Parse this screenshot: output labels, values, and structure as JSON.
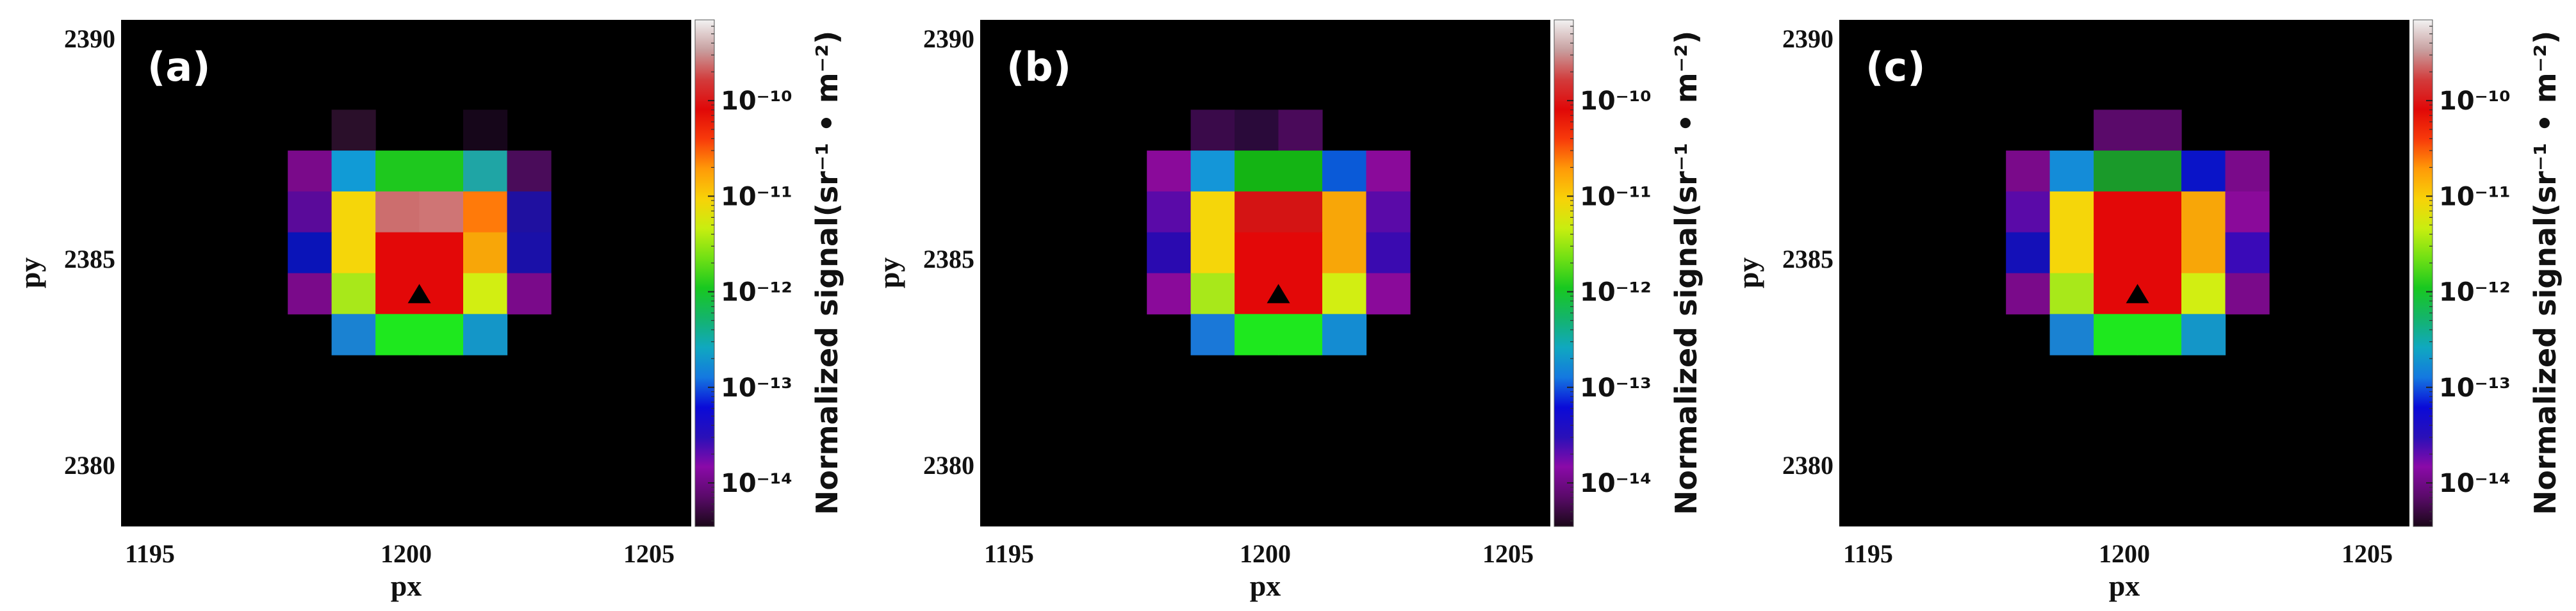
{
  "chart_data": [
    {
      "type": "heatmap",
      "panel_label": "(a)",
      "xlabel": "px",
      "ylabel": "py",
      "xlim": [
        1193.7,
        1206.7
      ],
      "ylim": [
        2378.3,
        2390.7
      ],
      "x_ticks": [
        1195,
        1200,
        1205
      ],
      "y_ticks": [
        2380,
        2385,
        2390
      ],
      "background": "#000000",
      "marker": {
        "x": 1200.5,
        "y": 2384,
        "shape": "triangle",
        "color": "#000000"
      },
      "cells": [
        {
          "x": 1199,
          "y": 2388,
          "color": "#2a0f2a"
        },
        {
          "x": 1202,
          "y": 2388,
          "color": "#16061a"
        },
        {
          "x": 1198,
          "y": 2387,
          "color": "#7a0a8a"
        },
        {
          "x": 1199,
          "y": 2387,
          "color": "#119bd6"
        },
        {
          "x": 1200,
          "y": 2387,
          "color": "#1ec81e"
        },
        {
          "x": 1201,
          "y": 2387,
          "color": "#1ec81e"
        },
        {
          "x": 1202,
          "y": 2387,
          "color": "#1fa5a5"
        },
        {
          "x": 1203,
          "y": 2387,
          "color": "#4a0c5a"
        },
        {
          "x": 1198,
          "y": 2386,
          "color": "#5a0a9a"
        },
        {
          "x": 1199,
          "y": 2386,
          "color": "#f5d60a"
        },
        {
          "x": 1200,
          "y": 2386,
          "color": "#cc6e6e"
        },
        {
          "x": 1201,
          "y": 2386,
          "color": "#cf7575"
        },
        {
          "x": 1202,
          "y": 2386,
          "color": "#ff7a0a"
        },
        {
          "x": 1203,
          "y": 2386,
          "color": "#1f10a0"
        },
        {
          "x": 1198,
          "y": 2385,
          "color": "#0a14b8"
        },
        {
          "x": 1199,
          "y": 2385,
          "color": "#f5d60a"
        },
        {
          "x": 1200,
          "y": 2385,
          "color": "#e30808"
        },
        {
          "x": 1201,
          "y": 2385,
          "color": "#e30808"
        },
        {
          "x": 1202,
          "y": 2385,
          "color": "#f8a608"
        },
        {
          "x": 1203,
          "y": 2385,
          "color": "#1a10a8"
        },
        {
          "x": 1198,
          "y": 2384,
          "color": "#7a0a8a"
        },
        {
          "x": 1199,
          "y": 2384,
          "color": "#a8e81a"
        },
        {
          "x": 1200,
          "y": 2384,
          "color": "#e30808"
        },
        {
          "x": 1201,
          "y": 2384,
          "color": "#e30808"
        },
        {
          "x": 1202,
          "y": 2384,
          "color": "#d2ee12"
        },
        {
          "x": 1203,
          "y": 2384,
          "color": "#7a0a8a"
        },
        {
          "x": 1199,
          "y": 2383,
          "color": "#1a82d2"
        },
        {
          "x": 1200,
          "y": 2383,
          "color": "#1ee81e"
        },
        {
          "x": 1201,
          "y": 2383,
          "color": "#1ee81e"
        },
        {
          "x": 1202,
          "y": 2383,
          "color": "#1496c8"
        }
      ]
    },
    {
      "type": "heatmap",
      "panel_label": "(b)",
      "xlabel": "px",
      "ylabel": "py",
      "xlim": [
        1193.7,
        1206.7
      ],
      "ylim": [
        2378.3,
        2390.7
      ],
      "x_ticks": [
        1195,
        1200,
        1205
      ],
      "y_ticks": [
        2380,
        2385,
        2390
      ],
      "background": "#000000",
      "marker": {
        "x": 1200.5,
        "y": 2384,
        "shape": "triangle",
        "color": "#000000"
      },
      "cells": [
        {
          "x": 1199,
          "y": 2388,
          "color": "#3a0a4a"
        },
        {
          "x": 1200,
          "y": 2388,
          "color": "#2a0a3a"
        },
        {
          "x": 1201,
          "y": 2388,
          "color": "#4a0a5a"
        },
        {
          "x": 1198,
          "y": 2387,
          "color": "#8a0a9a"
        },
        {
          "x": 1199,
          "y": 2387,
          "color": "#1496d8"
        },
        {
          "x": 1200,
          "y": 2387,
          "color": "#14b414"
        },
        {
          "x": 1201,
          "y": 2387,
          "color": "#14b414"
        },
        {
          "x": 1202,
          "y": 2387,
          "color": "#0a5ad8"
        },
        {
          "x": 1203,
          "y": 2387,
          "color": "#8a0a9a"
        },
        {
          "x": 1198,
          "y": 2386,
          "color": "#5a0aa8"
        },
        {
          "x": 1199,
          "y": 2386,
          "color": "#f5d60a"
        },
        {
          "x": 1200,
          "y": 2386,
          "color": "#d41414"
        },
        {
          "x": 1201,
          "y": 2386,
          "color": "#d41414"
        },
        {
          "x": 1202,
          "y": 2386,
          "color": "#f8a608"
        },
        {
          "x": 1203,
          "y": 2386,
          "color": "#5a0aa8"
        },
        {
          "x": 1198,
          "y": 2385,
          "color": "#2a0ab0"
        },
        {
          "x": 1199,
          "y": 2385,
          "color": "#f5d60a"
        },
        {
          "x": 1200,
          "y": 2385,
          "color": "#e30808"
        },
        {
          "x": 1201,
          "y": 2385,
          "color": "#e30808"
        },
        {
          "x": 1202,
          "y": 2385,
          "color": "#f8a608"
        },
        {
          "x": 1203,
          "y": 2385,
          "color": "#3a0ab0"
        },
        {
          "x": 1198,
          "y": 2384,
          "color": "#8a0a9a"
        },
        {
          "x": 1199,
          "y": 2384,
          "color": "#a8e81a"
        },
        {
          "x": 1200,
          "y": 2384,
          "color": "#e30808"
        },
        {
          "x": 1201,
          "y": 2384,
          "color": "#e30808"
        },
        {
          "x": 1202,
          "y": 2384,
          "color": "#d2ee12"
        },
        {
          "x": 1203,
          "y": 2384,
          "color": "#8a0a9a"
        },
        {
          "x": 1199,
          "y": 2383,
          "color": "#1a78d8"
        },
        {
          "x": 1200,
          "y": 2383,
          "color": "#1ee81e"
        },
        {
          "x": 1201,
          "y": 2383,
          "color": "#1ee81e"
        },
        {
          "x": 1202,
          "y": 2383,
          "color": "#148cd2"
        }
      ]
    },
    {
      "type": "heatmap",
      "panel_label": "(c)",
      "xlabel": "px",
      "ylabel": "py",
      "xlim": [
        1193.7,
        1206.7
      ],
      "ylim": [
        2378.3,
        2390.7
      ],
      "x_ticks": [
        1195,
        1200,
        1205
      ],
      "y_ticks": [
        2380,
        2385,
        2390
      ],
      "background": "#000000",
      "marker": {
        "x": 1200.5,
        "y": 2384,
        "shape": "triangle",
        "color": "#000000"
      },
      "cells": [
        {
          "x": 1200,
          "y": 2388,
          "color": "#5a0a6a"
        },
        {
          "x": 1201,
          "y": 2388,
          "color": "#5a0a6a"
        },
        {
          "x": 1198,
          "y": 2387,
          "color": "#7a0a8a"
        },
        {
          "x": 1199,
          "y": 2387,
          "color": "#148cd8"
        },
        {
          "x": 1200,
          "y": 2387,
          "color": "#1a9a2a"
        },
        {
          "x": 1201,
          "y": 2387,
          "color": "#1a9a2a"
        },
        {
          "x": 1202,
          "y": 2387,
          "color": "#0a14c8"
        },
        {
          "x": 1203,
          "y": 2387,
          "color": "#7a0a8a"
        },
        {
          "x": 1198,
          "y": 2386,
          "color": "#5a0aa8"
        },
        {
          "x": 1199,
          "y": 2386,
          "color": "#f5d60a"
        },
        {
          "x": 1200,
          "y": 2386,
          "color": "#e30808"
        },
        {
          "x": 1201,
          "y": 2386,
          "color": "#e30808"
        },
        {
          "x": 1202,
          "y": 2386,
          "color": "#f8a608"
        },
        {
          "x": 1203,
          "y": 2386,
          "color": "#8a0a9a"
        },
        {
          "x": 1198,
          "y": 2385,
          "color": "#1410b8"
        },
        {
          "x": 1199,
          "y": 2385,
          "color": "#f5d60a"
        },
        {
          "x": 1200,
          "y": 2385,
          "color": "#e30808"
        },
        {
          "x": 1201,
          "y": 2385,
          "color": "#e30808"
        },
        {
          "x": 1202,
          "y": 2385,
          "color": "#f8a608"
        },
        {
          "x": 1203,
          "y": 2385,
          "color": "#3a0ab8"
        },
        {
          "x": 1198,
          "y": 2384,
          "color": "#7a0a8a"
        },
        {
          "x": 1199,
          "y": 2384,
          "color": "#a8e81a"
        },
        {
          "x": 1200,
          "y": 2384,
          "color": "#e30808"
        },
        {
          "x": 1201,
          "y": 2384,
          "color": "#e30808"
        },
        {
          "x": 1202,
          "y": 2384,
          "color": "#d2ee12"
        },
        {
          "x": 1203,
          "y": 2384,
          "color": "#7a0a8a"
        },
        {
          "x": 1199,
          "y": 2383,
          "color": "#1a82d2"
        },
        {
          "x": 1200,
          "y": 2383,
          "color": "#1ee81e"
        },
        {
          "x": 1201,
          "y": 2383,
          "color": "#1ee81e"
        },
        {
          "x": 1202,
          "y": 2383,
          "color": "#1496c8"
        }
      ]
    }
  ],
  "colorbar": {
    "label": "Normalized signal(sr⁻¹ • m⁻²)",
    "scale": "log",
    "range": [
      3.5e-15,
      7e-10
    ],
    "tick_values": [
      1e-14,
      1e-13,
      1e-12,
      1e-11,
      1e-10
    ],
    "tick_labels": [
      "10⁻¹⁴",
      "10⁻¹³",
      "10⁻¹²",
      "10⁻¹¹",
      "10⁻¹⁰"
    ],
    "colormap": [
      "#1a0818",
      "#5a0a6a",
      "#8a0aa8",
      "#2a10b8",
      "#0a0ad8",
      "#1478e0",
      "#10a8c0",
      "#14b46a",
      "#18c820",
      "#70e014",
      "#c8ee10",
      "#f8d208",
      "#ff9a08",
      "#f83a0a",
      "#e00808",
      "#d23c3c",
      "#c8a0a0",
      "#f2f2f2"
    ]
  }
}
